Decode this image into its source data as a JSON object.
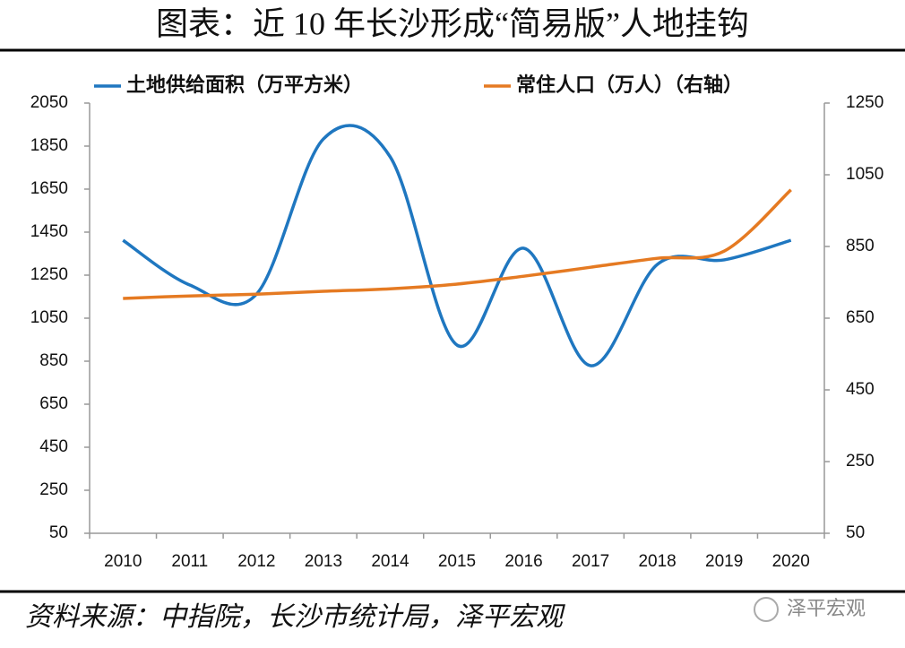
{
  "chart_data": {
    "type": "line",
    "title": "图表：近 10 年长沙形成“简易版”人地挂钩",
    "source": "资料来源：中指院，长沙市统计局，泽平宏观",
    "watermark": "泽平宏观",
    "categories": [
      "2010",
      "2011",
      "2012",
      "2013",
      "2014",
      "2015",
      "2016",
      "2017",
      "2018",
      "2019",
      "2020"
    ],
    "series": [
      {
        "name": "土地供给面积（万平方米）",
        "color": "#1f77c0",
        "values": [
          1412,
          1204,
          1162,
          1883,
          1800,
          925,
          1375,
          829,
          1300,
          1321,
          1412
        ]
      },
      {
        "name": "常住人口（万人）（右轴）",
        "color": "#e57a22",
        "axis": "y2",
        "values": [
          705,
          712,
          717,
          725,
          732,
          745,
          767,
          792,
          817,
          837,
          1008
        ]
      }
    ],
    "ylim": [
      50,
      2050
    ],
    "yticks": [
      50,
      250,
      450,
      650,
      850,
      1050,
      1250,
      1450,
      1650,
      1850,
      2050
    ],
    "y2lim": [
      50,
      1250
    ],
    "y2ticks": [
      50,
      250,
      450,
      650,
      850,
      1050,
      1250
    ],
    "smooth": true,
    "grid": false,
    "legend": "top"
  }
}
